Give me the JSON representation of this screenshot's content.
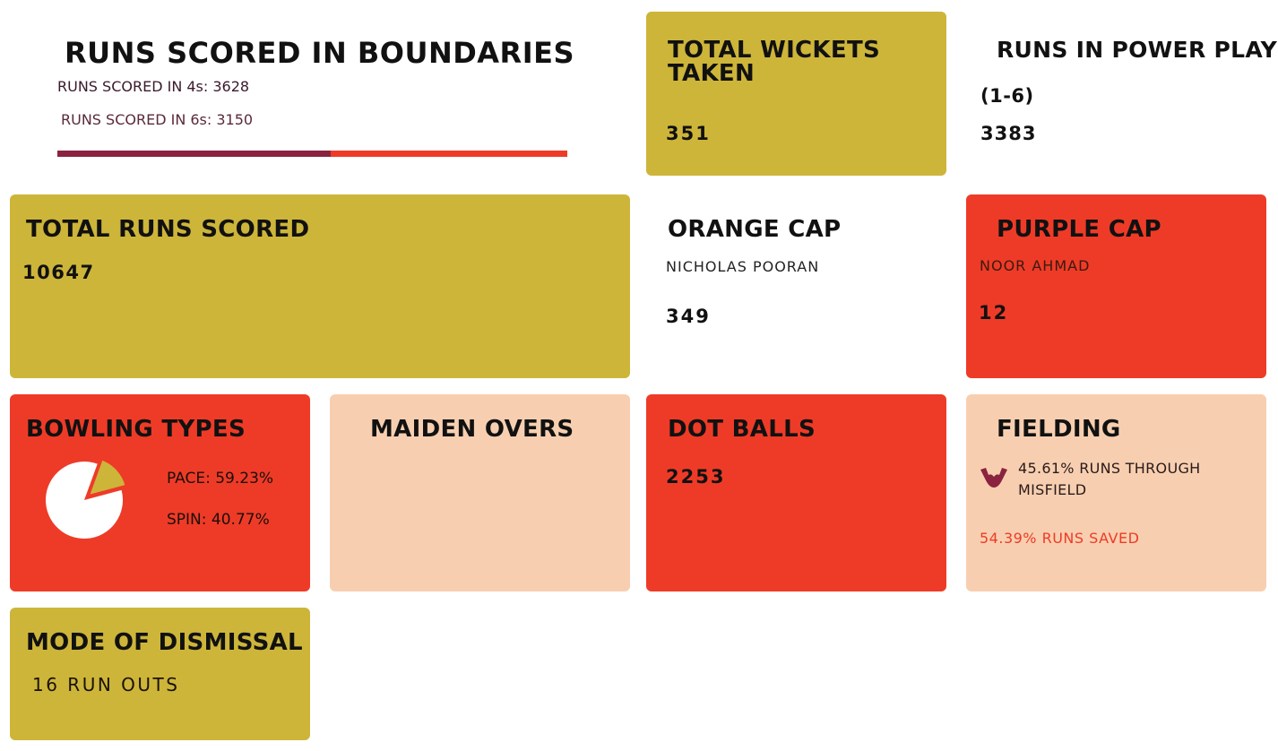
{
  "boundaries": {
    "title": "RUNS SCORED IN BOUNDARIES",
    "fours_label": "RUNS SCORED IN 4s: 3628",
    "sixes_label": "RUNS SCORED IN 6s: 3150",
    "fours_runs": 3628,
    "sixes_runs": 3150,
    "fours_color": "#8b2340",
    "sixes_color": "#ee3b27"
  },
  "wickets": {
    "title_line1": "TOTAL WICKETS",
    "title_line2": "TAKEN",
    "value": "351"
  },
  "powerplay": {
    "title": "RUNS IN POWER PLAY",
    "subtitle": "(1-6)",
    "value": "3383"
  },
  "total_runs": {
    "title": "TOTAL RUNS SCORED",
    "value": "10647"
  },
  "orange_cap": {
    "title": "ORANGE CAP",
    "player": "NICHOLAS POORAN",
    "value": "349"
  },
  "purple_cap": {
    "title": "PURPLE CAP",
    "player": "NOOR AHMAD",
    "value": "12"
  },
  "bowling": {
    "title": "BOWLING TYPES",
    "pace_label": "PACE: 59.23%",
    "spin_label": "SPIN: 40.77%",
    "pie_icon": "pie-chart-icon"
  },
  "maiden": {
    "title": "MAIDEN OVERS"
  },
  "dot_balls": {
    "title": "DOT BALLS",
    "value": "2253"
  },
  "fielding": {
    "title": "FIELDING",
    "misfield_line1": "45.61% RUNS THROUGH",
    "misfield_line2": "MISFIELD",
    "saved": "54.39% RUNS SAVED",
    "icon": "hands-icon",
    "saved_color": "#ee3b27"
  },
  "dismissal": {
    "title": "MODE OF DISMISSAL",
    "value": "16 RUN OUTS"
  },
  "colors": {
    "gold": "#cdb53a",
    "red": "#ee3b27",
    "peach": "#f7cfb0"
  }
}
